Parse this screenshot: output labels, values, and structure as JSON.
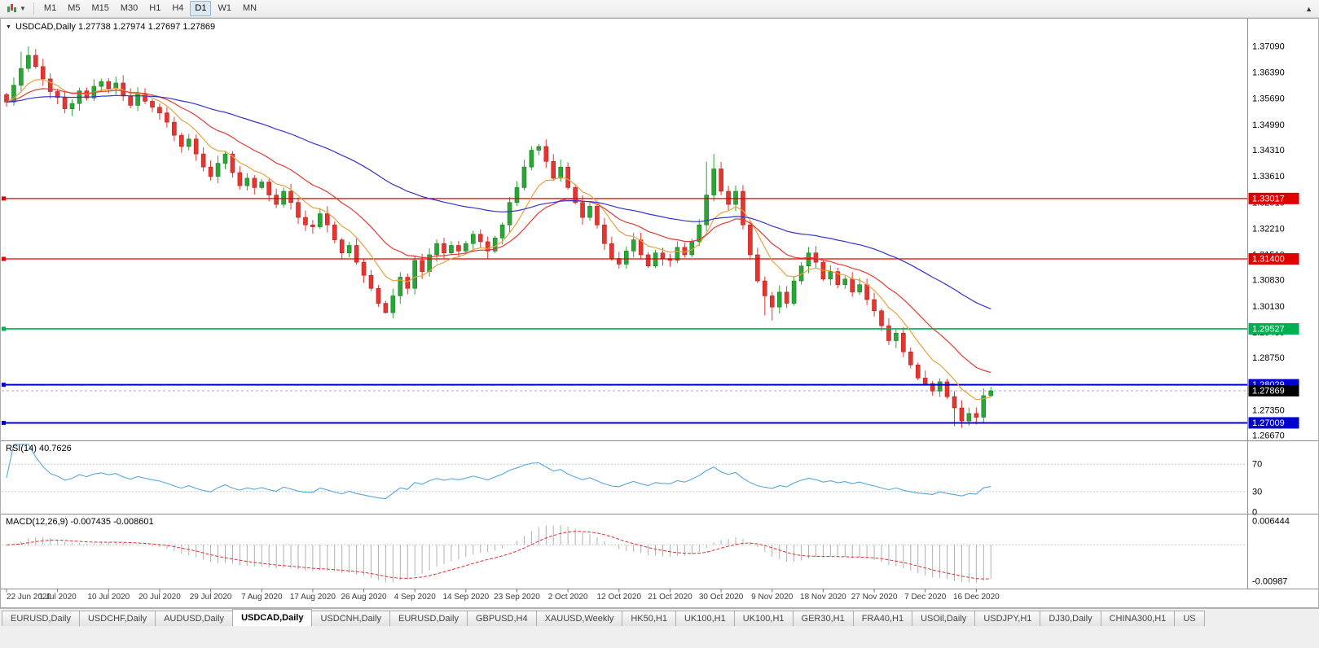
{
  "icons": {
    "collapse": "▼",
    "overflow": "▲",
    "caret": "▼"
  },
  "toolbar": {
    "timeframes": [
      {
        "label": "M1",
        "active": false
      },
      {
        "label": "M5",
        "active": false
      },
      {
        "label": "M15",
        "active": false
      },
      {
        "label": "M30",
        "active": false
      },
      {
        "label": "H1",
        "active": false
      },
      {
        "label": "H4",
        "active": false
      },
      {
        "label": "D1",
        "active": true
      },
      {
        "label": "W1",
        "active": false
      },
      {
        "label": "MN",
        "active": false
      }
    ]
  },
  "chart": {
    "header": "USDCAD,Daily 1.27738 1.27974 1.27697 1.27869",
    "symbol": "USDCAD",
    "period": "Daily",
    "ohlc": {
      "open": "1.27738",
      "high": "1.27974",
      "low": "1.27697",
      "close": "1.27869"
    }
  },
  "price_axis": {
    "labels": [
      "1.37090",
      "1.36390",
      "1.35690",
      "1.34990",
      "1.34310",
      "1.33610",
      "1.32910",
      "1.32210",
      "1.31510",
      "1.30830",
      "1.30130",
      "1.29430",
      "1.28750",
      "1.28050",
      "1.27350",
      "1.26670"
    ],
    "badges": [
      {
        "text": "1.33017",
        "value": 1.33017,
        "bg": "#e00000"
      },
      {
        "text": "1.31400",
        "value": 1.314,
        "bg": "#e00000"
      },
      {
        "text": "1.29527",
        "value": 1.29527,
        "bg": "#00b050"
      },
      {
        "text": "1.28029",
        "value": 1.28029,
        "bg": "#0000d0"
      },
      {
        "text": "1.27869",
        "value": 1.27869,
        "bg": "#000000"
      },
      {
        "text": "1.27009",
        "value": 1.27009,
        "bg": "#0000d0"
      }
    ]
  },
  "rsi": {
    "label": "RSI(14) 40.7626",
    "period": 14,
    "current_value": 40.7626,
    "levels": [
      {
        "label": "70",
        "value": 70
      },
      {
        "label": "30",
        "value": 30
      },
      {
        "label": "0",
        "value": 0
      }
    ]
  },
  "macd": {
    "label": "MACD(12,26,9) -0.007435 -0.008601",
    "params": "12,26,9",
    "main_value": -0.007435,
    "signal_value": -0.008601,
    "max_label": "0.006444",
    "max_value": 0.006444,
    "min_label": "-0.00987",
    "min_value": -0.00987
  },
  "date_axis": {
    "labels": [
      "22 Jun 2020",
      "1 Jul 2020",
      "10 Jul 2020",
      "20 Jul 2020",
      "29 Jul 2020",
      "7 Aug 2020",
      "17 Aug 2020",
      "26 Aug 2020",
      "4 Sep 2020",
      "14 Sep 2020",
      "23 Sep 2020",
      "2 Oct 2020",
      "12 Oct 2020",
      "21 Oct 2020",
      "30 Oct 2020",
      "9 Nov 2020",
      "18 Nov 2020",
      "27 Nov 2020",
      "7 Dec 2020",
      "16 Dec 2020"
    ]
  },
  "tabs": [
    {
      "label": "EURUSD,Daily",
      "active": false
    },
    {
      "label": "USDCHF,Daily",
      "active": false
    },
    {
      "label": "AUDUSD,Daily",
      "active": false
    },
    {
      "label": "USDCAD,Daily",
      "active": true
    },
    {
      "label": "USDCNH,Daily",
      "active": false
    },
    {
      "label": "EURUSD,Daily",
      "active": false
    },
    {
      "label": "GBPUSD,H4",
      "active": false
    },
    {
      "label": "XAUUSD,Weekly",
      "active": false
    },
    {
      "label": "HK50,H1",
      "active": false
    },
    {
      "label": "UK100,H1",
      "active": false
    },
    {
      "label": "UK100,H1",
      "active": false
    },
    {
      "label": "GER30,H1",
      "active": false
    },
    {
      "label": "FRA40,H1",
      "active": false
    },
    {
      "label": "USOil,Daily",
      "active": false
    },
    {
      "label": "USDJPY,H1",
      "active": false
    },
    {
      "label": "DJ30,Daily",
      "active": false
    },
    {
      "label": "CHINA300,H1",
      "active": false
    },
    {
      "label": "US",
      "active": false
    }
  ],
  "colors": {
    "candle_up": "#2aa637",
    "candle_up_edge": "#1d7d28",
    "candle_down": "#e53530",
    "candle_down_edge": "#b32420",
    "level_red": "#e00000",
    "level_green": "#00b050",
    "level_blue": "#0000d0",
    "rsi_line": "#57a7dc",
    "macd_hist": "#b0b0b0",
    "macd_signal": "#e03030",
    "axis_text": "#000000",
    "date_text": "#3c3c3c",
    "current_price_line": "#a8a8a8",
    "separator": "#8c8c8c",
    "grid_dash": "#c8c8c8"
  },
  "chart_data": {
    "type": "candlestick",
    "symbol": "USDCAD",
    "timeframe": "Daily",
    "title": "USDCAD,Daily",
    "price_range": {
      "top": 1.3709,
      "bottom": 1.2667
    },
    "current_price": 1.27869,
    "first_open": 1.358,
    "closes": [
      1.356,
      1.3605,
      1.365,
      1.3685,
      1.3655,
      1.3622,
      1.3588,
      1.3572,
      1.3542,
      1.3556,
      1.359,
      1.3571,
      1.3602,
      1.3615,
      1.3596,
      1.3611,
      1.3576,
      1.3551,
      1.3581,
      1.3562,
      1.3546,
      1.3531,
      1.3506,
      1.3471,
      1.3441,
      1.3461,
      1.3421,
      1.3386,
      1.3361,
      1.3396,
      1.3421,
      1.3371,
      1.3336,
      1.3356,
      1.3331,
      1.3346,
      1.3311,
      1.3286,
      1.3321,
      1.3291,
      1.3251,
      1.3231,
      1.3226,
      1.3261,
      1.3231,
      1.3191,
      1.3156,
      1.3176,
      1.3131,
      1.3096,
      1.3061,
      1.3021,
      1.2996,
      1.3041,
      1.3091,
      1.3061,
      1.3136,
      1.3106,
      1.3151,
      1.3181,
      1.3156,
      1.3176,
      1.3161,
      1.3181,
      1.3206,
      1.3186,
      1.3161,
      1.3196,
      1.3231,
      1.3291,
      1.3331,
      1.3386,
      1.3431,
      1.3441,
      1.3401,
      1.3356,
      1.3386,
      1.3331,
      1.3291,
      1.3251,
      1.3281,
      1.3231,
      1.3181,
      1.3141,
      1.3126,
      1.3161,
      1.3191,
      1.3151,
      1.3121,
      1.3156,
      1.3141,
      1.3136,
      1.3171,
      1.3151,
      1.3186,
      1.3231,
      1.3311,
      1.3381,
      1.3321,
      1.3286,
      1.3321,
      1.3231,
      1.3151,
      1.3081,
      1.3041,
      1.3011,
      1.3051,
      1.3021,
      1.3081,
      1.3121,
      1.3156,
      1.3131,
      1.3086,
      1.3106,
      1.3071,
      1.3086,
      1.3051,
      1.3071,
      1.3031,
      1.3001,
      1.2961,
      1.2921,
      1.2941,
      1.2891,
      1.2856,
      1.2821,
      1.2806,
      1.2786,
      1.2811,
      1.2771,
      1.2741,
      1.2706,
      1.2726,
      1.2716,
      1.27738,
      1.27869
    ],
    "overrides": {
      "2": {
        "h": 1.3695
      },
      "3": {
        "h": 1.3709
      },
      "4": {
        "h": 1.3702
      },
      "52": {
        "l": 1.2994
      },
      "72": {
        "h": 1.3442
      },
      "73": {
        "h": 1.3448
      },
      "96": {
        "h": 1.34
      },
      "97": {
        "h": 1.3421
      },
      "104": {
        "l": 1.2989
      },
      "105": {
        "l": 1.2975
      },
      "110": {
        "h": 1.3172
      },
      "130": {
        "l": 1.2692
      },
      "131": {
        "l": 1.2688
      },
      "135": {
        "h": 1.27974,
        "l": 1.27697
      }
    },
    "levels": [
      {
        "value": 1.33017,
        "label": "1.33017",
        "color_key": "level_red",
        "width": 1.3
      },
      {
        "value": 1.314,
        "label": "1.31400",
        "color_key": "level_red",
        "width": 1.3
      },
      {
        "value": 1.29527,
        "label": "1.29527",
        "color_key": "level_green",
        "width": 1.6
      },
      {
        "value": 1.28029,
        "label": "1.28029",
        "color_key": "level_blue",
        "width": 2
      },
      {
        "value": 1.27009,
        "label": "1.27009",
        "color_key": "level_blue",
        "width": 2
      }
    ],
    "moving_averages": [
      {
        "name": "ma-fast",
        "period": 8,
        "color": "#eaa23e"
      },
      {
        "name": "ma-mid",
        "period": 18,
        "color": "#e53935"
      },
      {
        "name": "ma-slow",
        "period": 55,
        "color": "#3333cc"
      }
    ],
    "bars_per_label": 7
  }
}
